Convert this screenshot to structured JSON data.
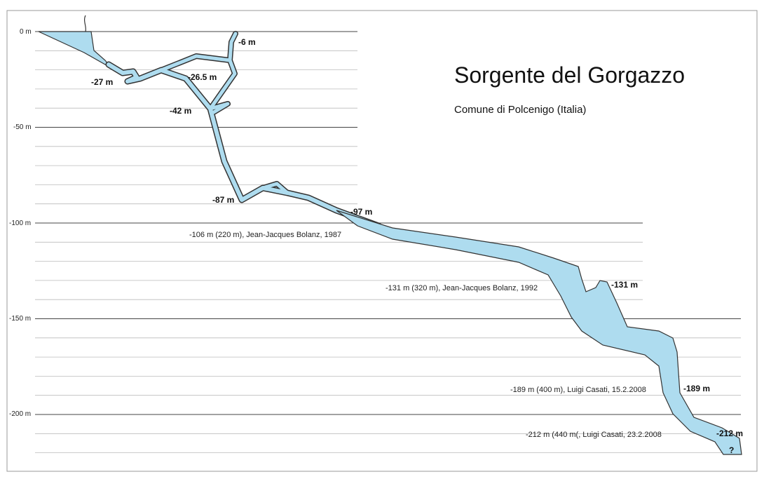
{
  "diagram": {
    "title": "Sorgente del Gorgazzo",
    "subtitle": "Comune di Polcenigo (Italia)",
    "depth_axis": [
      "0 m",
      "-50 m",
      "-100 m",
      "-150 m",
      "-200 m"
    ],
    "depth_labels": [
      "-6 m",
      "-27 m",
      "-26.5 m",
      "-42 m",
      "-87 m",
      "-97 m",
      "-131 m",
      "-189 m",
      "-212 m",
      "?"
    ],
    "exploration_notes": [
      "-106 m (220 m), Jean-Jacques Bolanz, 1987",
      "-131 m (320 m), Jean-Jacques Bolanz, 1992",
      "-189 m (400 m), Luigi Casati, 15.2.2008",
      "-212 m (440 m(, Luigi Casati, 23.2.2008"
    ]
  }
}
